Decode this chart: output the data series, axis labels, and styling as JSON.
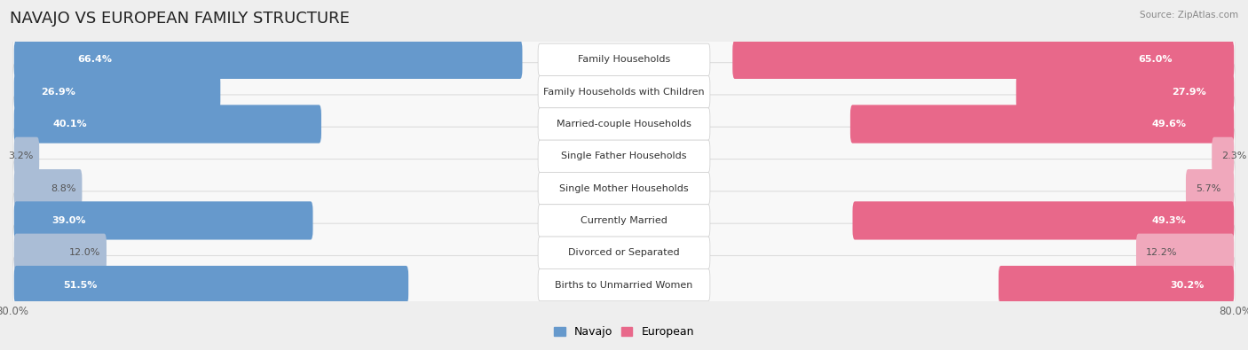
{
  "title": "NAVAJO VS EUROPEAN FAMILY STRUCTURE",
  "source": "Source: ZipAtlas.com",
  "categories": [
    "Family Households",
    "Family Households with Children",
    "Married-couple Households",
    "Single Father Households",
    "Single Mother Households",
    "Currently Married",
    "Divorced or Separated",
    "Births to Unmarried Women"
  ],
  "navajo_values": [
    66.4,
    26.9,
    40.1,
    3.2,
    8.8,
    39.0,
    12.0,
    51.5
  ],
  "european_values": [
    65.0,
    27.9,
    49.6,
    2.3,
    5.7,
    49.3,
    12.2,
    30.2
  ],
  "navajo_color_dark": "#6699cc",
  "navajo_color_light": "#aabdd6",
  "european_color_dark": "#e8688a",
  "european_color_light": "#f0a8bc",
  "max_value": 80.0,
  "background_color": "#eeeeee",
  "row_bg_color": "#f8f8f8",
  "row_border_color": "#dddddd",
  "title_fontsize": 13,
  "label_fontsize": 8,
  "value_fontsize": 8,
  "legend_fontsize": 9,
  "axis_label_fontsize": 8.5
}
